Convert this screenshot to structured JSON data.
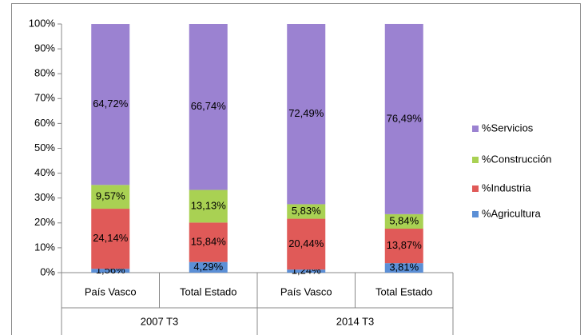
{
  "chart_data": {
    "type": "stacked_bar",
    "categories": [
      "País Vasco",
      "Total Estado",
      "País Vasco",
      "Total Estado"
    ],
    "category_groups": [
      "2007 T3",
      "2014 T3"
    ],
    "series": [
      {
        "name": "%Agricultura",
        "color": "#5b8fd6",
        "values": [
          1.56,
          4.29,
          1.24,
          3.81
        ],
        "value_labels": [
          "1,56%",
          "4,29%",
          "1,24%",
          "3,81%"
        ]
      },
      {
        "name": "%Industria",
        "color": "#e05a58",
        "values": [
          24.14,
          15.84,
          20.44,
          13.87
        ],
        "value_labels": [
          "24,14%",
          "15,84%",
          "20,44%",
          "13,87%"
        ]
      },
      {
        "name": "%Construcción",
        "color": "#a9d153",
        "values": [
          9.57,
          13.13,
          5.83,
          5.84
        ],
        "value_labels": [
          "9,57%",
          "13,13%",
          "5,83%",
          "5,84%"
        ]
      },
      {
        "name": "%Servicios",
        "color": "#9b82d1",
        "values": [
          64.72,
          66.74,
          72.49,
          76.49
        ],
        "value_labels": [
          "64,72%",
          "66,74%",
          "72,49%",
          "76,49%"
        ]
      }
    ],
    "ylim": [
      0,
      100
    ],
    "yticks": [
      {
        "value": 0,
        "label": "0%"
      },
      {
        "value": 10,
        "label": "10%"
      },
      {
        "value": 20,
        "label": "20%"
      },
      {
        "value": 30,
        "label": "30%"
      },
      {
        "value": 40,
        "label": "40%"
      },
      {
        "value": 50,
        "label": "50%"
      },
      {
        "value": 60,
        "label": "60%"
      },
      {
        "value": 70,
        "label": "70%"
      },
      {
        "value": 80,
        "label": "80%"
      },
      {
        "value": 90,
        "label": "90%"
      },
      {
        "value": 100,
        "label": "100%"
      }
    ],
    "legend": "right"
  }
}
